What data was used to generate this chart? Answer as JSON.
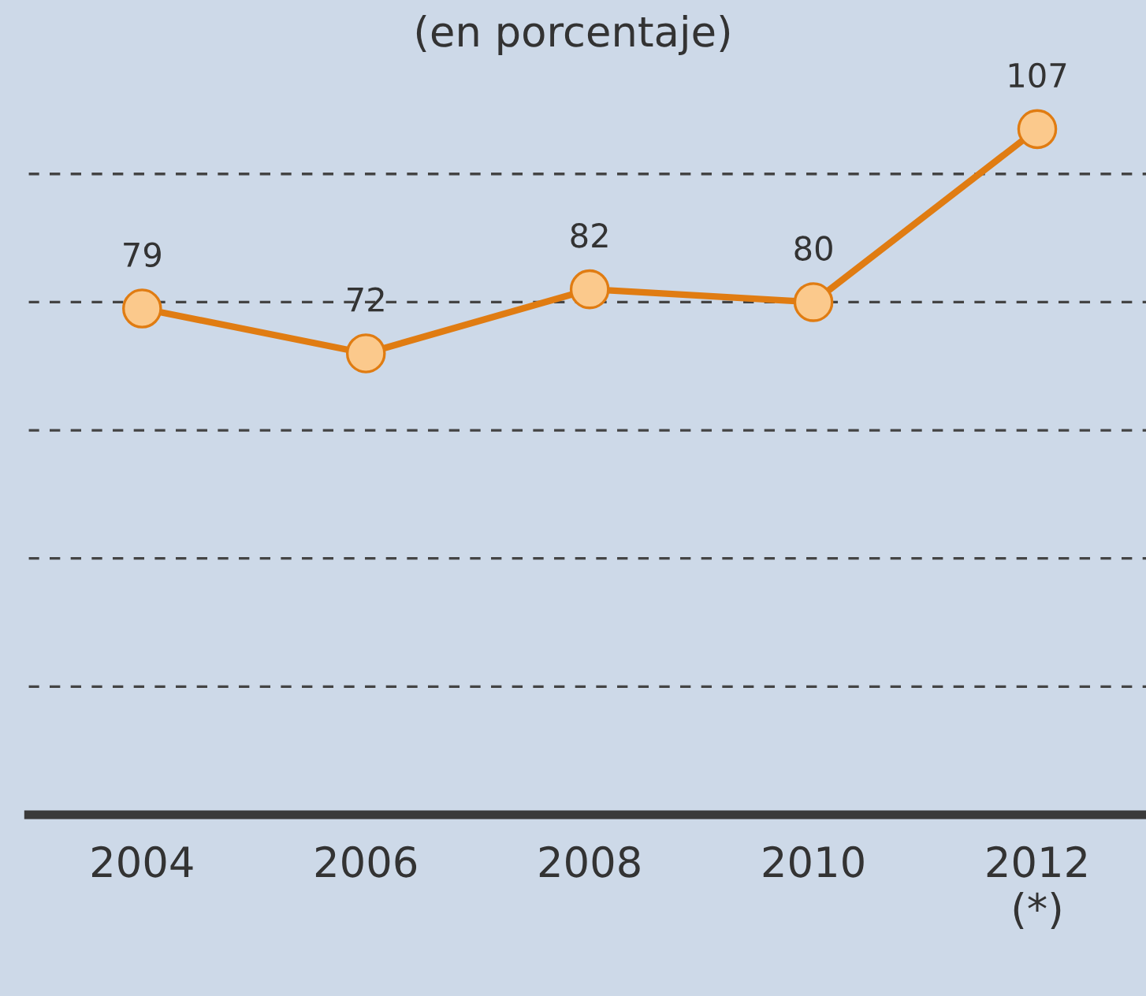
{
  "chart_data": {
    "type": "line",
    "title": "(en porcentaje)",
    "categories": [
      "2004",
      "2006",
      "2008",
      "2010",
      "2012\n(*)"
    ],
    "series": [
      {
        "color": "#e07c12",
        "values": [
          79,
          72,
          82,
          80,
          107
        ]
      }
    ],
    "marker": "circle",
    "line_style": "solid",
    "data_labels": true,
    "ref_lines": [
      {
        "axis": "y",
        "value": 20,
        "color": "#444444",
        "line_style": "dashed"
      },
      {
        "axis": "y",
        "value": 40,
        "color": "#444444",
        "line_style": "dashed"
      },
      {
        "axis": "y",
        "value": 60,
        "color": "#444444",
        "line_style": "dashed"
      },
      {
        "axis": "y",
        "value": 80,
        "color": "#444444",
        "line_style": "dashed"
      },
      {
        "axis": "y",
        "value": 100,
        "color": "#444444",
        "line_style": "dashed"
      }
    ],
    "tick_labels": "x",
    "legend": false
  }
}
